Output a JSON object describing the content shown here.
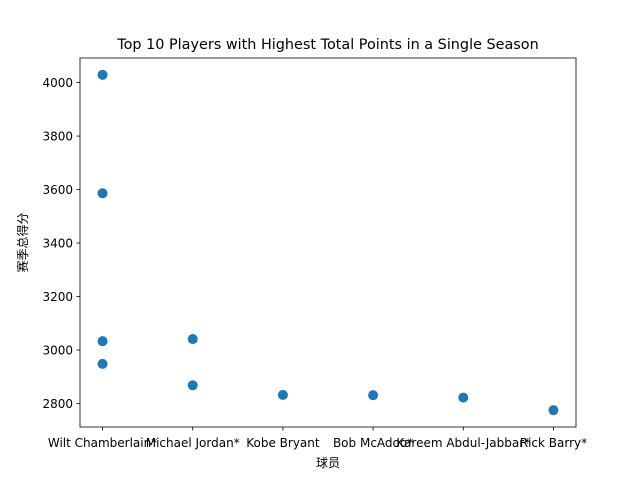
{
  "chart_data": {
    "type": "scatter",
    "title": "Top 10 Players with Highest Total Points in a Single Season",
    "xlabel": "球员",
    "ylabel": "赛季总得分",
    "categories": [
      "Wilt Chamberlain*",
      "Michael Jordan*",
      "Kobe Bryant",
      "Bob McAdoo*",
      "Kareem Abdul-Jabbar*",
      "Rick Barry*"
    ],
    "points": [
      {
        "x": "Wilt Chamberlain*",
        "y": 4029
      },
      {
        "x": "Wilt Chamberlain*",
        "y": 3586
      },
      {
        "x": "Wilt Chamberlain*",
        "y": 3033
      },
      {
        "x": "Wilt Chamberlain*",
        "y": 2948
      },
      {
        "x": "Michael Jordan*",
        "y": 3041
      },
      {
        "x": "Michael Jordan*",
        "y": 2868
      },
      {
        "x": "Kobe Bryant",
        "y": 2832
      },
      {
        "x": "Bob McAdoo*",
        "y": 2831
      },
      {
        "x": "Kareem Abdul-Jabbar*",
        "y": 2822
      },
      {
        "x": "Rick Barry*",
        "y": 2775
      }
    ],
    "yticks": [
      2800,
      3000,
      3200,
      3400,
      3600,
      3800,
      4000
    ],
    "ylim": [
      2712,
      4092
    ],
    "grid": false,
    "marker_color": "#1f77b4"
  }
}
